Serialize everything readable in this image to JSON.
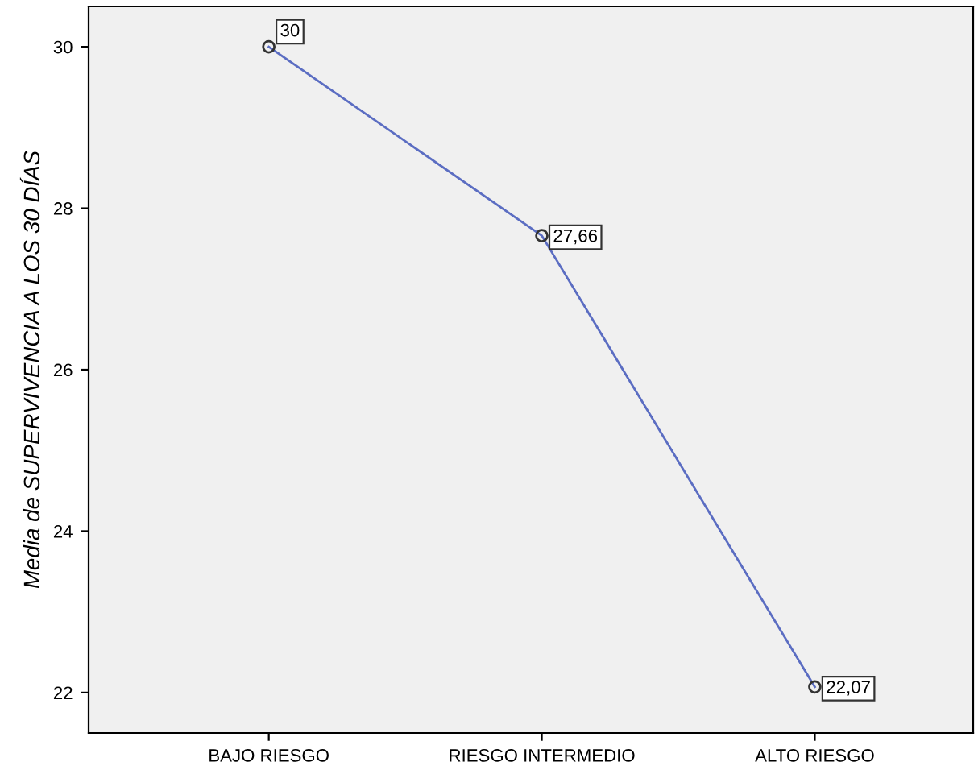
{
  "chart_data": {
    "type": "line",
    "ylabel": "Media de SUPERVIVENCIA A LOS 30 DÍAS",
    "categories": [
      "BAJO RIESGO",
      "RIESGO INTERMEDIO",
      "ALTO RIESGO"
    ],
    "series": [
      {
        "color": "#5b6dc2",
        "values": [
          30,
          27.66,
          22.07
        ],
        "value_labels": [
          "30",
          "27,66",
          "22,07"
        ]
      }
    ],
    "ylim": [
      21.5,
      30.5
    ],
    "yticks": [
      22,
      24,
      26,
      28,
      30
    ],
    "grid": false,
    "legend": false,
    "marker": "circle",
    "line_style": "solid"
  }
}
